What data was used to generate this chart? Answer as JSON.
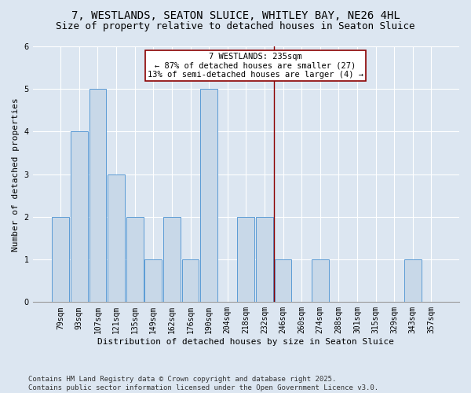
{
  "title": "7, WESTLANDS, SEATON SLUICE, WHITLEY BAY, NE26 4HL",
  "subtitle": "Size of property relative to detached houses in Seaton Sluice",
  "xlabel": "Distribution of detached houses by size in Seaton Sluice",
  "ylabel": "Number of detached properties",
  "categories": [
    "79sqm",
    "93sqm",
    "107sqm",
    "121sqm",
    "135sqm",
    "149sqm",
    "162sqm",
    "176sqm",
    "190sqm",
    "204sqm",
    "218sqm",
    "232sqm",
    "246sqm",
    "260sqm",
    "274sqm",
    "288sqm",
    "301sqm",
    "315sqm",
    "329sqm",
    "343sqm",
    "357sqm"
  ],
  "values": [
    2,
    4,
    5,
    3,
    2,
    1,
    2,
    1,
    5,
    0,
    2,
    2,
    1,
    0,
    1,
    0,
    0,
    0,
    0,
    1,
    0
  ],
  "bar_color": "#c8d8e8",
  "bar_edge_color": "#5b9bd5",
  "subject_label": "7 WESTLANDS: 235sqm",
  "annotation_line1": "← 87% of detached houses are smaller (27)",
  "annotation_line2": "13% of semi-detached houses are larger (4) →",
  "vline_color": "#8b0000",
  "annotation_box_edge": "#8b0000",
  "ylim": [
    0,
    6
  ],
  "yticks": [
    0,
    1,
    2,
    3,
    4,
    5,
    6
  ],
  "footnote_line1": "Contains HM Land Registry data © Crown copyright and database right 2025.",
  "footnote_line2": "Contains public sector information licensed under the Open Government Licence v3.0.",
  "bg_color": "#dce6f1",
  "plot_bg_color": "#dce6f1",
  "grid_color": "#ffffff",
  "title_fontsize": 10,
  "subtitle_fontsize": 9,
  "xlabel_fontsize": 8,
  "ylabel_fontsize": 8,
  "tick_fontsize": 7,
  "annotation_fontsize": 7.5,
  "footnote_fontsize": 6.5
}
